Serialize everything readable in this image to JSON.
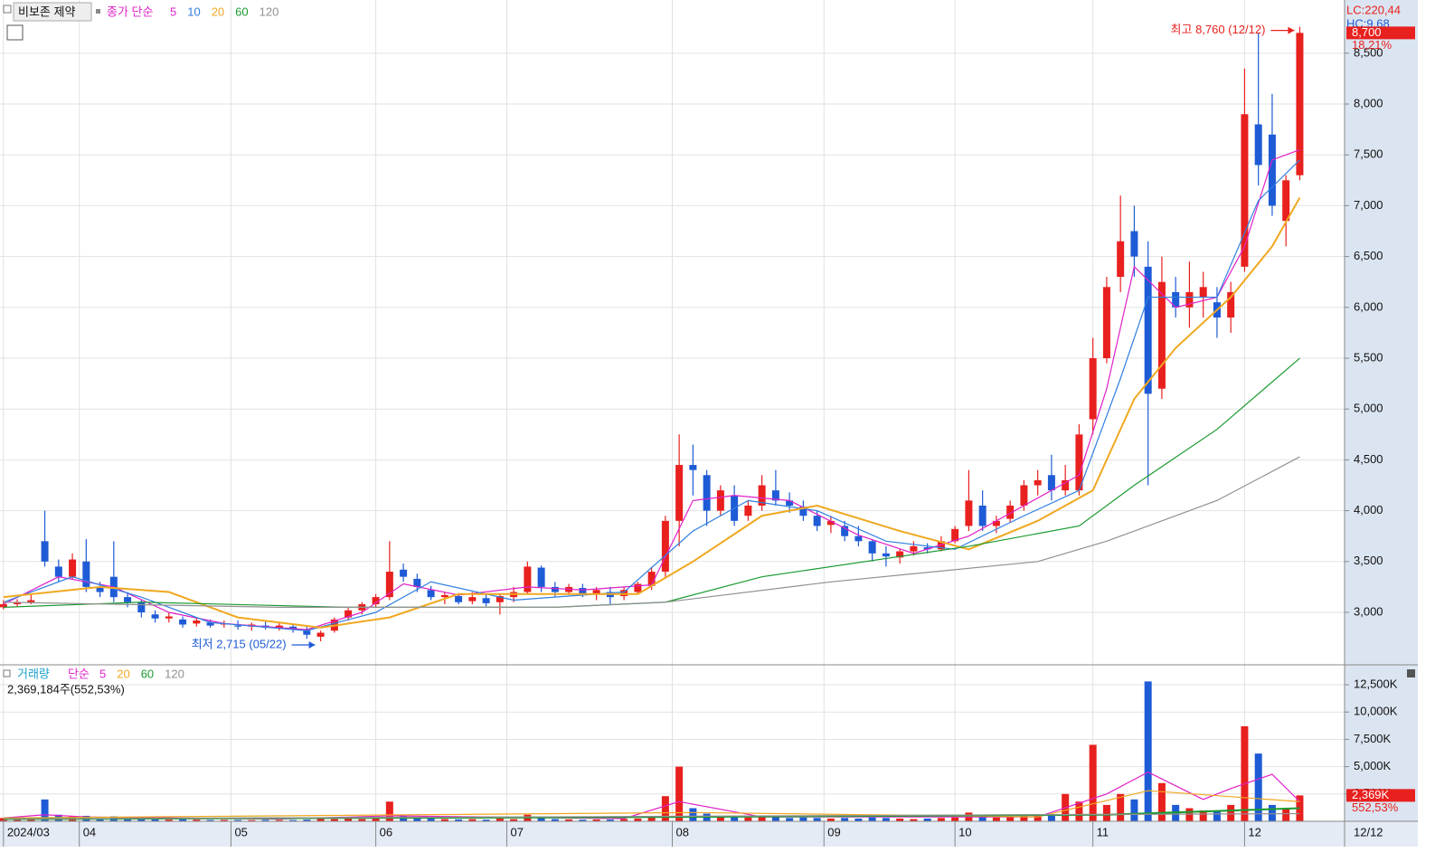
{
  "chart_data": {
    "type": "candlestick",
    "name": "비보존 제약",
    "legend_label": "종가 단순",
    "colors": {
      "up": "#e8201e",
      "down": "#1e5bd6"
    },
    "x": [
      0,
      2,
      4,
      6,
      8,
      10,
      12,
      14,
      16,
      18,
      20,
      22,
      24,
      26,
      28,
      30,
      32,
      34,
      36,
      38,
      40,
      42,
      44,
      46,
      48,
      50,
      52,
      54,
      56,
      58,
      60,
      62,
      64,
      66,
      68,
      70,
      72,
      74,
      76,
      78,
      80,
      82,
      84,
      86,
      88,
      90,
      92,
      94,
      96,
      98,
      100,
      102,
      104,
      106,
      108,
      110,
      112,
      114,
      116,
      118,
      120,
      122,
      124,
      126,
      128,
      130,
      132,
      134,
      136,
      138,
      140,
      142,
      144,
      146,
      148,
      150,
      152,
      154,
      156,
      158,
      160,
      162,
      164,
      166,
      168,
      170,
      172,
      174,
      176,
      178,
      180,
      182,
      184,
      186,
      188
    ],
    "open": [
      3050,
      3080,
      3100,
      3700,
      3450,
      3350,
      3500,
      3250,
      3350,
      3150,
      3100,
      2980,
      2940,
      2930,
      2890,
      2900,
      2880,
      2870,
      2860,
      2870,
      2850,
      2860,
      2820,
      2760,
      2820,
      2950,
      3020,
      3080,
      3150,
      3420,
      3330,
      3220,
      3150,
      3160,
      3110,
      3140,
      3100,
      3150,
      3200,
      3440,
      3250,
      3200,
      3240,
      3180,
      3200,
      3160,
      3200,
      3260,
      3400,
      3900,
      4450,
      4350,
      4000,
      4150,
      3950,
      4050,
      4200,
      4100,
      4040,
      3950,
      3860,
      3850,
      3750,
      3700,
      3580,
      3540,
      3600,
      3640,
      3620,
      3700,
      3850,
      4050,
      3850,
      3920,
      4050,
      4250,
      4350,
      4200,
      4200,
      4900,
      5500,
      6300,
      6750,
      6400,
      5200,
      6150,
      6000,
      6100,
      6050,
      5900,
      6400,
      7800,
      7700,
      6850,
      7300
    ],
    "high": [
      3120,
      3130,
      3180,
      4000,
      3520,
      3580,
      3720,
      3300,
      3700,
      3200,
      3120,
      3020,
      3000,
      2960,
      2950,
      2930,
      2920,
      2920,
      2900,
      2910,
      2900,
      2890,
      2860,
      2820,
      2950,
      3050,
      3100,
      3180,
      3700,
      3480,
      3380,
      3260,
      3200,
      3190,
      3200,
      3180,
      3180,
      3250,
      3500,
      3460,
      3300,
      3280,
      3280,
      3250,
      3250,
      3250,
      3300,
      3450,
      3950,
      4750,
      4650,
      4400,
      4250,
      4250,
      4100,
      4350,
      4400,
      4180,
      4100,
      4000,
      3950,
      3900,
      3850,
      3720,
      3650,
      3620,
      3700,
      3680,
      3750,
      3850,
      4400,
      4200,
      3950,
      4100,
      4300,
      4400,
      4550,
      4450,
      4850,
      5700,
      6300,
      7100,
      7000,
      6650,
      6500,
      6300,
      6450,
      6350,
      6200,
      6250,
      8350,
      8700,
      8100,
      7300,
      8760
    ],
    "low": [
      3030,
      3060,
      3080,
      3450,
      3300,
      3320,
      3200,
      3150,
      3100,
      3050,
      2950,
      2900,
      2900,
      2850,
      2860,
      2850,
      2850,
      2830,
      2820,
      2830,
      2820,
      2800,
      2740,
      2715,
      2800,
      2920,
      2980,
      3050,
      3120,
      3300,
      3200,
      3120,
      3080,
      3080,
      3080,
      3060,
      2980,
      3100,
      3180,
      3200,
      3150,
      3170,
      3150,
      3120,
      3080,
      3120,
      3180,
      3220,
      3350,
      3650,
      4150,
      3850,
      3950,
      3850,
      3900,
      4000,
      4050,
      3980,
      3900,
      3800,
      3780,
      3700,
      3650,
      3500,
      3450,
      3480,
      3560,
      3580,
      3600,
      3680,
      3800,
      3800,
      3780,
      3880,
      4000,
      4150,
      4100,
      4150,
      4150,
      4750,
      5450,
      6150,
      6300,
      4250,
      5100,
      5900,
      5800,
      5900,
      5700,
      5750,
      6350,
      7200,
      6900,
      6600,
      7250
    ],
    "close": [
      3080,
      3100,
      3120,
      3500,
      3350,
      3520,
      3250,
      3200,
      3150,
      3100,
      3000,
      2940,
      2960,
      2880,
      2920,
      2870,
      2890,
      2860,
      2880,
      2850,
      2870,
      2830,
      2780,
      2800,
      2930,
      3020,
      3080,
      3150,
      3400,
      3350,
      3250,
      3150,
      3170,
      3100,
      3150,
      3090,
      3160,
      3200,
      3450,
      3250,
      3200,
      3250,
      3180,
      3220,
      3150,
      3220,
      3280,
      3400,
      3900,
      4450,
      4400,
      4000,
      4200,
      3900,
      4050,
      4250,
      4100,
      4050,
      3950,
      3850,
      3900,
      3750,
      3700,
      3580,
      3550,
      3600,
      3650,
      3620,
      3700,
      3820,
      4100,
      3850,
      3900,
      4050,
      4250,
      4300,
      4200,
      4300,
      4750,
      5500,
      6200,
      6650,
      6500,
      5150,
      6250,
      6000,
      6150,
      6200,
      5900,
      6150,
      7900,
      7400,
      7000,
      7250,
      8700
    ],
    "ma_series": [
      {
        "name": "5",
        "color": "#e020c8",
        "x": [
          0,
          8,
          16,
          24,
          32,
          44,
          52,
          58,
          66,
          76,
          84,
          94,
          100,
          106,
          114,
          124,
          132,
          140,
          148,
          156,
          160,
          164,
          170,
          176,
          180,
          184,
          188
        ],
        "values": [
          3080,
          3350,
          3250,
          3000,
          2890,
          2830,
          3000,
          3280,
          3170,
          3250,
          3220,
          3270,
          4100,
          4150,
          4100,
          3760,
          3580,
          3750,
          4050,
          4350,
          5200,
          6400,
          6000,
          6100,
          6600,
          7450,
          7550
        ]
      },
      {
        "name": "10",
        "color": "#2f7fe0",
        "x": [
          0,
          10,
          20,
          30,
          44,
          54,
          62,
          74,
          90,
          100,
          108,
          118,
          128,
          138,
          148,
          156,
          162,
          166,
          176,
          182,
          188
        ],
        "values": [
          3100,
          3350,
          3150,
          2900,
          2820,
          3000,
          3300,
          3120,
          3200,
          3800,
          4100,
          4000,
          3700,
          3620,
          3950,
          4200,
          5300,
          6100,
          6100,
          7050,
          7450
        ]
      },
      {
        "name": "20",
        "color": "#f0a820",
        "x": [
          0,
          14,
          24,
          34,
          46,
          56,
          66,
          80,
          92,
          100,
          110,
          118,
          130,
          140,
          150,
          158,
          164,
          170,
          178,
          184,
          188
        ],
        "values": [
          3150,
          3250,
          3200,
          2950,
          2850,
          2950,
          3180,
          3180,
          3180,
          3500,
          3950,
          4050,
          3800,
          3620,
          3900,
          4200,
          5100,
          5600,
          6100,
          6600,
          7080
        ]
      },
      {
        "name": "60",
        "color": "#1a9a30",
        "x": [
          0,
          20,
          50,
          80,
          96,
          110,
          130,
          140,
          156,
          164,
          176,
          188
        ],
        "values": [
          3050,
          3100,
          3050,
          3050,
          3100,
          3350,
          3550,
          3650,
          3850,
          4250,
          4800,
          5500
        ]
      },
      {
        "name": "120",
        "color": "#909090",
        "x": [
          0,
          40,
          80,
          96,
          120,
          150,
          160,
          176,
          188
        ],
        "values": [
          3100,
          3050,
          3050,
          3100,
          3300,
          3500,
          3700,
          4100,
          4530
        ]
      }
    ],
    "xlim": [
      -0.5,
      194.5
    ],
    "xticks": [
      {
        "value": 0,
        "label": "2024/03"
      },
      {
        "value": 11,
        "label": "04"
      },
      {
        "value": 33,
        "label": "05"
      },
      {
        "value": 54,
        "label": "06"
      },
      {
        "value": 73,
        "label": "07"
      },
      {
        "value": 97,
        "label": "08"
      },
      {
        "value": 119,
        "label": "09"
      },
      {
        "value": 138,
        "label": "10"
      },
      {
        "value": 158,
        "label": "11"
      },
      {
        "value": 180,
        "label": "12"
      }
    ],
    "ylim": [
      2484,
      8979
    ],
    "yticks": [
      {
        "value": 3000,
        "label": "3,000"
      },
      {
        "value": 3500,
        "label": "3,500"
      },
      {
        "value": 4000,
        "label": "4,000"
      },
      {
        "value": 4500,
        "label": "4,500"
      },
      {
        "value": 5000,
        "label": "5,000"
      },
      {
        "value": 5500,
        "label": "5,500"
      },
      {
        "value": 6000,
        "label": "6,000"
      },
      {
        "value": 6500,
        "label": "6,500"
      },
      {
        "value": 7000,
        "label": "7,000"
      },
      {
        "value": 7500,
        "label": "7,500"
      },
      {
        "value": 8000,
        "label": "8,000"
      },
      {
        "value": 8500,
        "label": "8,500"
      }
    ],
    "grid": true,
    "annotations": [
      {
        "label": "최고 8,760 (12/12)",
        "value": 8760,
        "x": 188,
        "color": "#e8201e",
        "side": "left"
      },
      {
        "label": "최저 2,715 (05/22)",
        "value": 2715,
        "x": 46,
        "color": "#1e5bd6",
        "side": "left"
      }
    ],
    "lc_label": "LC:220,44",
    "hc_label": "HC:9,68",
    "last_price": {
      "value": 8700,
      "label": "8,700"
    },
    "change_label": "18,21%",
    "date_label": "12/12",
    "volume": {
      "title": "거래량",
      "legend_label": "단순",
      "summary": "2,369,184주(552,53%)",
      "values": [
        300,
        250,
        350,
        2000,
        600,
        450,
        500,
        300,
        450,
        250,
        200,
        180,
        150,
        200,
        150,
        120,
        130,
        120,
        110,
        130,
        120,
        110,
        150,
        250,
        200,
        250,
        200,
        300,
        1800,
        500,
        300,
        250,
        200,
        180,
        200,
        150,
        250,
        200,
        600,
        300,
        200,
        180,
        150,
        170,
        160,
        200,
        250,
        400,
        2300,
        5000,
        1200,
        700,
        500,
        450,
        350,
        500,
        400,
        300,
        350,
        300,
        250,
        300,
        250,
        350,
        300,
        250,
        200,
        250,
        300,
        350,
        800,
        500,
        350,
        400,
        550,
        500,
        600,
        2500,
        1800,
        7000,
        1500,
        2500,
        2000,
        12800,
        3500,
        1500,
        1200,
        1000,
        900,
        1500,
        8700,
        6200,
        1500,
        1200,
        2369
      ],
      "ylim": [
        0,
        14156
      ],
      "yticks": [
        {
          "value": 2500,
          "label": "2,500K"
        },
        {
          "value": 5000,
          "label": "5,000K"
        },
        {
          "value": 7500,
          "label": "7,500K"
        },
        {
          "value": 10000,
          "label": "10,000K"
        },
        {
          "value": 12500,
          "label": "12,500K"
        }
      ],
      "last": {
        "value": 2369,
        "label": "2,369K"
      },
      "change_label": "552,53%",
      "ma_series": [
        {
          "name": "5",
          "color": "#e020c8",
          "x": [
            0,
            6,
            12,
            40,
            56,
            90,
            98,
            110,
            150,
            160,
            166,
            174,
            178,
            184,
            188
          ],
          "values": [
            300,
            600,
            400,
            200,
            500,
            250,
            1800,
            400,
            400,
            2500,
            4500,
            2000,
            3000,
            4300,
            1800
          ]
        },
        {
          "name": "20",
          "color": "#f0a820",
          "x": [
            0,
            100,
            150,
            166,
            188
          ],
          "values": [
            300,
            800,
            400,
            2800,
            1800
          ]
        },
        {
          "name": "60",
          "color": "#1a9a30",
          "x": [
            0,
            100,
            160,
            188
          ],
          "values": [
            200,
            400,
            600,
            1200
          ]
        },
        {
          "name": "120",
          "color": "#909090",
          "x": [
            0,
            188
          ],
          "values": [
            200,
            700
          ]
        }
      ]
    }
  }
}
